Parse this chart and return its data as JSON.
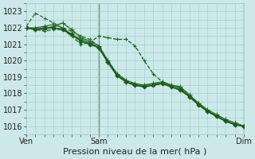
{
  "background_color": "#cce8e8",
  "plot_bg_color": "#cce8e8",
  "grid_color": "#99cccc",
  "line_color_dark": "#1a5c1a",
  "line_color_medium": "#2d7a2d",
  "xlim": [
    0,
    48
  ],
  "ylim": [
    1015.5,
    1023.5
  ],
  "yticks": [
    1016,
    1017,
    1018,
    1019,
    1020,
    1021,
    1022,
    1023
  ],
  "xtick_positions": [
    0,
    16,
    48
  ],
  "xtick_labels": [
    "Ven",
    "Sam",
    "Dim"
  ],
  "xlabel": "Pression niveau de la mer( hPa )",
  "xlabel_fontsize": 8,
  "tick_fontsize": 7,
  "vline_positions": [
    16,
    48
  ],
  "series": [
    {
      "x": [
        0,
        2,
        4,
        6,
        8,
        10,
        12,
        14,
        16,
        18,
        20,
        22,
        24,
        26,
        28,
        30,
        32,
        34,
        36,
        38,
        40,
        42,
        44,
        46,
        48
      ],
      "y": [
        1022.1,
        1022.9,
        1022.6,
        1022.3,
        1022.0,
        1021.8,
        1021.5,
        1021.3,
        1020.9,
        1020.0,
        1019.2,
        1018.8,
        1018.5,
        1018.4,
        1018.5,
        1018.6,
        1018.5,
        1018.3,
        1017.8,
        1017.4,
        1016.9,
        1016.6,
        1016.3,
        1016.1,
        1016.0
      ],
      "style": "--",
      "marker": "+",
      "markersize": 3.5,
      "linewidth": 0.9,
      "color": "#2d6e2d"
    },
    {
      "x": [
        0,
        2,
        4,
        6,
        8,
        10,
        12,
        14,
        16,
        18,
        20,
        22,
        24,
        26,
        28,
        30,
        32,
        34,
        36,
        38,
        40,
        42,
        44,
        46,
        48
      ],
      "y": [
        1022.0,
        1021.9,
        1021.8,
        1021.9,
        1021.9,
        1021.5,
        1021.0,
        1021.1,
        1021.5,
        1021.4,
        1021.3,
        1021.3,
        1020.9,
        1020.0,
        1019.2,
        1018.7,
        1018.5,
        1018.4,
        1017.9,
        1017.4,
        1016.9,
        1016.6,
        1016.3,
        1016.1,
        1016.0
      ],
      "style": "--",
      "marker": "+",
      "markersize": 3.5,
      "linewidth": 0.9,
      "color": "#1a5c1a"
    },
    {
      "x": [
        0,
        2,
        4,
        6,
        8,
        10,
        12,
        14,
        16,
        18,
        20,
        22,
        24,
        26,
        28,
        30,
        32,
        34,
        36,
        38,
        40,
        42,
        44,
        46,
        48
      ],
      "y": [
        1022.0,
        1022.0,
        1022.1,
        1022.2,
        1022.0,
        1021.6,
        1021.3,
        1021.1,
        1020.8,
        1019.9,
        1019.1,
        1018.7,
        1018.5,
        1018.5,
        1018.6,
        1018.7,
        1018.5,
        1018.3,
        1017.8,
        1017.4,
        1016.9,
        1016.6,
        1016.3,
        1016.1,
        1016.0
      ],
      "style": "-",
      "marker": "+",
      "markersize": 4,
      "linewidth": 1.0,
      "color": "#2d7a2d"
    },
    {
      "x": [
        0,
        2,
        4,
        6,
        8,
        10,
        12,
        14,
        16,
        18,
        20,
        22,
        24,
        26,
        28,
        30,
        32,
        34,
        36,
        38,
        40,
        42,
        44,
        46,
        48
      ],
      "y": [
        1022.0,
        1021.9,
        1021.9,
        1022.1,
        1022.3,
        1021.9,
        1021.4,
        1021.2,
        1020.9,
        1020.0,
        1019.2,
        1018.8,
        1018.6,
        1018.5,
        1018.6,
        1018.7,
        1018.5,
        1018.4,
        1017.9,
        1017.4,
        1017.0,
        1016.7,
        1016.4,
        1016.2,
        1016.0
      ],
      "style": "-",
      "marker": "+",
      "markersize": 4,
      "linewidth": 1.0,
      "color": "#2d6e2d"
    },
    {
      "x": [
        0,
        2,
        4,
        6,
        8,
        10,
        12,
        14,
        16,
        18,
        20,
        22,
        24,
        26,
        28,
        30,
        32,
        34,
        36,
        38,
        40,
        42,
        44,
        46,
        48
      ],
      "y": [
        1022.0,
        1021.9,
        1022.0,
        1022.0,
        1021.9,
        1021.6,
        1021.2,
        1021.0,
        1020.8,
        1019.9,
        1019.1,
        1018.7,
        1018.5,
        1018.4,
        1018.5,
        1018.6,
        1018.4,
        1018.2,
        1017.8,
        1017.3,
        1016.9,
        1016.6,
        1016.3,
        1016.1,
        1016.0
      ],
      "style": "-",
      "marker": "D",
      "markersize": 2.5,
      "linewidth": 1.3,
      "color": "#1a5c1a"
    }
  ]
}
